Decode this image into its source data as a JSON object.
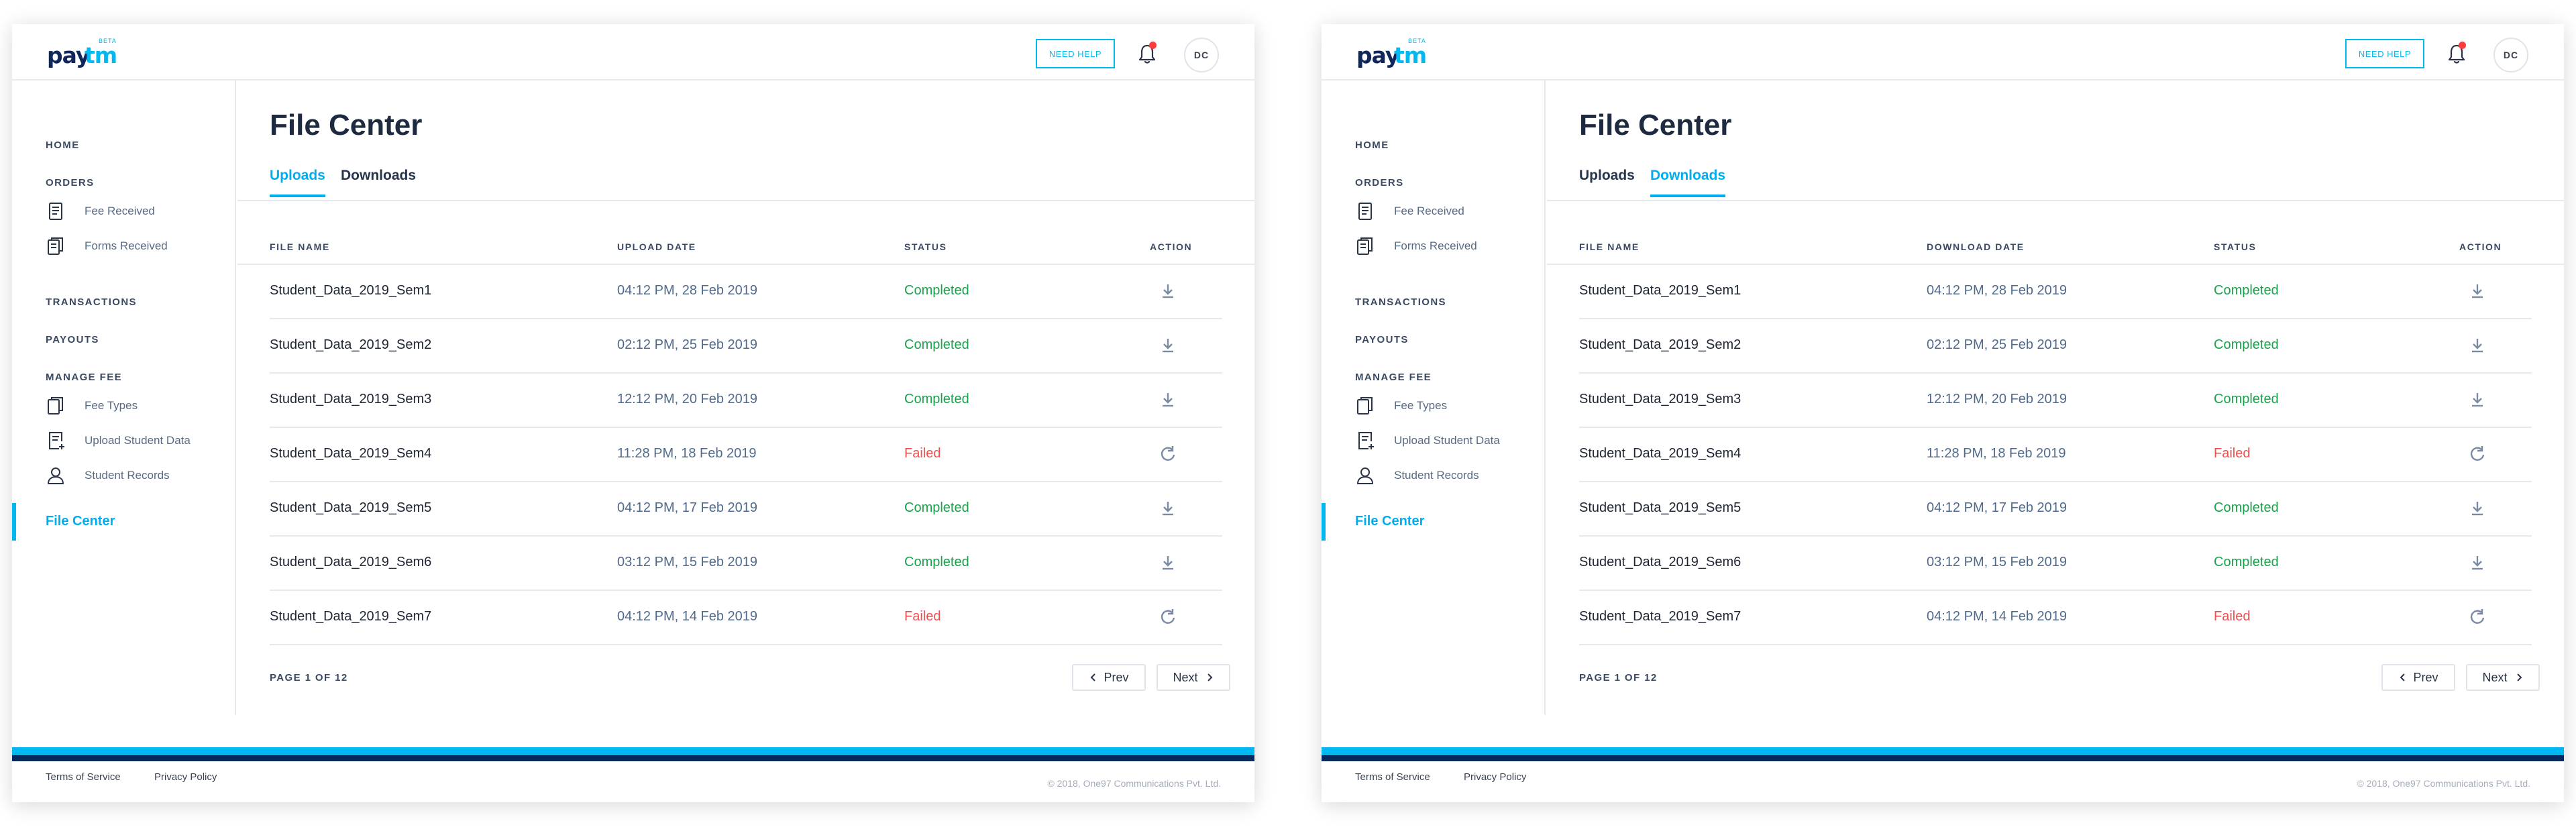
{
  "brand": {
    "logo_pay": "pay",
    "logo_tm": "tm",
    "logo_badge": "BETA",
    "accent": "#00b9f1",
    "navy": "#072a5c"
  },
  "header": {
    "help_label": "NEED HELP",
    "avatar_initials": "DC"
  },
  "sidebar": {
    "home": "HOME",
    "orders": "ORDERS",
    "fee_received": "Fee Received",
    "forms_received": "Forms Received",
    "transactions": "TRANSACTIONS",
    "payouts": "PAYOUTS",
    "manage_fee": "MANAGE FEE",
    "fee_types": "Fee Types",
    "upload_student_data": "Upload Student Data",
    "student_records": "Student Records",
    "file_center": "File Center"
  },
  "footer": {
    "terms": "Terms of Service",
    "privacy": "Privacy Policy",
    "copyright": "© 2018, One97 Communications Pvt. Ltd."
  },
  "panels": [
    {
      "title": "File Center",
      "tabs": [
        "Uploads",
        "Downloads"
      ],
      "active_tab": 0,
      "columns": [
        "FILE NAME",
        "UPLOAD DATE",
        "STATUS",
        "ACTION"
      ],
      "rows": [
        {
          "name": "Student_Data_2019_Sem1",
          "date": "04:12 PM, 28 Feb 2019",
          "status": "Completed",
          "action": "download-icon"
        },
        {
          "name": "Student_Data_2019_Sem2",
          "date": "02:12 PM, 25 Feb 2019",
          "status": "Completed",
          "action": "download-icon"
        },
        {
          "name": "Student_Data_2019_Sem3",
          "date": "12:12 PM, 20 Feb 2019",
          "status": "Completed",
          "action": "download-icon"
        },
        {
          "name": "Student_Data_2019_Sem4",
          "date": "11:28 PM, 18 Feb 2019",
          "status": "Failed",
          "action": "retry-icon"
        },
        {
          "name": "Student_Data_2019_Sem5",
          "date": "04:12 PM, 17 Feb 2019",
          "status": "Completed",
          "action": "download-icon"
        },
        {
          "name": "Student_Data_2019_Sem6",
          "date": "03:12 PM, 15 Feb 2019",
          "status": "Completed",
          "action": "download-icon"
        },
        {
          "name": "Student_Data_2019_Sem7",
          "date": "04:12 PM, 14 Feb 2019",
          "status": "Failed",
          "action": "retry-icon"
        }
      ],
      "page_info": "PAGE 1 OF 12",
      "prev_label": "Prev",
      "next_label": "Next"
    },
    {
      "title": "File Center",
      "tabs": [
        "Uploads",
        "Downloads"
      ],
      "active_tab": 1,
      "columns": [
        "FILE NAME",
        "DOWNLOAD DATE",
        "STATUS",
        "ACTION"
      ],
      "rows": [
        {
          "name": "Student_Data_2019_Sem1",
          "date": "04:12 PM, 28 Feb 2019",
          "status": "Completed",
          "action": "download-icon"
        },
        {
          "name": "Student_Data_2019_Sem2",
          "date": "02:12 PM, 25 Feb 2019",
          "status": "Completed",
          "action": "download-icon"
        },
        {
          "name": "Student_Data_2019_Sem3",
          "date": "12:12 PM, 20 Feb 2019",
          "status": "Completed",
          "action": "download-icon"
        },
        {
          "name": "Student_Data_2019_Sem4",
          "date": "11:28 PM, 18 Feb 2019",
          "status": "Failed",
          "action": "retry-icon"
        },
        {
          "name": "Student_Data_2019_Sem5",
          "date": "04:12 PM, 17 Feb 2019",
          "status": "Completed",
          "action": "download-icon"
        },
        {
          "name": "Student_Data_2019_Sem6",
          "date": "03:12 PM, 15 Feb 2019",
          "status": "Completed",
          "action": "download-icon"
        },
        {
          "name": "Student_Data_2019_Sem7",
          "date": "04:12 PM, 14 Feb 2019",
          "status": "Failed",
          "action": "retry-icon"
        }
      ],
      "page_info": "PAGE 1 OF 12",
      "prev_label": "Prev",
      "next_label": "Next"
    }
  ]
}
